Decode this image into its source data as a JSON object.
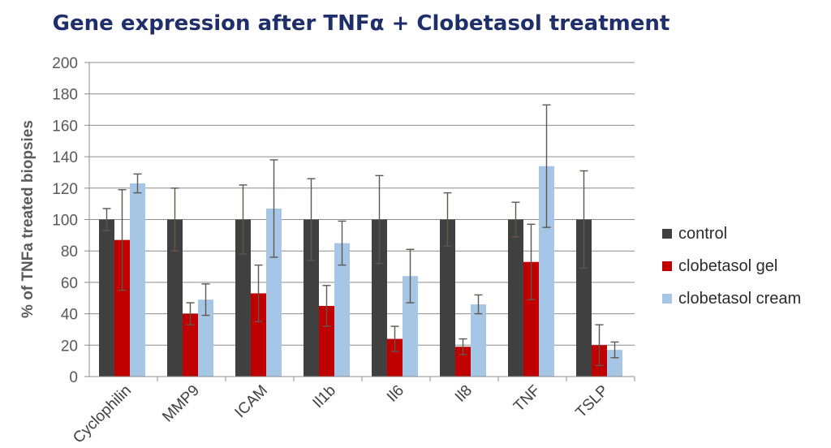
{
  "chart_data": {
    "type": "bar",
    "title": "Gene expression after TNFα + Clobetasol treatment",
    "xlabel": "",
    "ylabel": "% of TNFa treated biopsies",
    "ylim": [
      0,
      200
    ],
    "yticks": [
      0,
      20,
      40,
      60,
      80,
      100,
      120,
      140,
      160,
      180,
      200
    ],
    "grid": true,
    "legend_position": "right",
    "categories": [
      "Cyclophilin",
      "MMP9",
      "ICAM",
      "Il1b",
      "Il6",
      "Il8",
      "TNF",
      "TSLP"
    ],
    "series": [
      {
        "name": "control",
        "color": "#404040",
        "values": [
          100,
          100,
          100,
          100,
          100,
          100,
          100,
          100
        ],
        "error": [
          7,
          20,
          22,
          26,
          28,
          17,
          11,
          31
        ]
      },
      {
        "name": "clobetasol gel",
        "color": "#c00000",
        "values": [
          87,
          40,
          53,
          45,
          24,
          19,
          73,
          20
        ],
        "error": [
          32,
          7,
          18,
          13,
          8,
          5,
          24,
          13
        ]
      },
      {
        "name": "clobetasol cream",
        "color": "#a6c6e6",
        "values": [
          123,
          49,
          107,
          85,
          64,
          46,
          134,
          17
        ],
        "error": [
          6,
          10,
          31,
          14,
          17,
          6,
          39,
          5
        ]
      }
    ]
  }
}
